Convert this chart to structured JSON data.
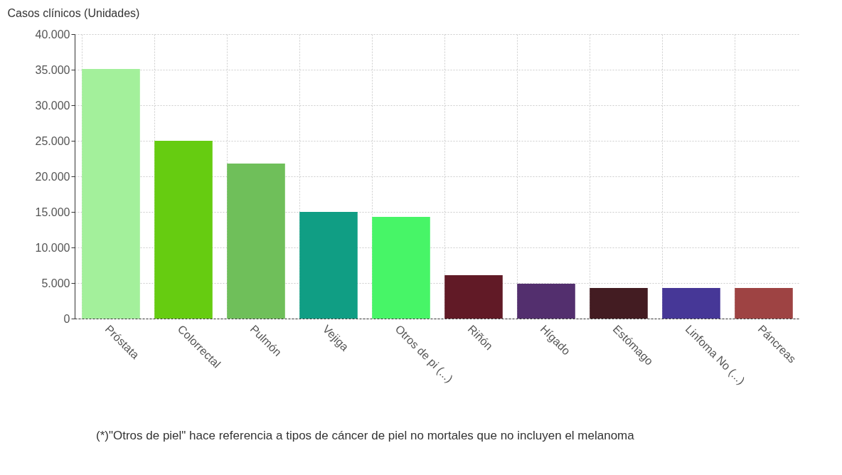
{
  "chart_data": {
    "type": "bar",
    "ylabel": "Casos clínicos (Unidades)",
    "categories": [
      "Próstata",
      "Colorrectal",
      "Pulmón",
      "Vejiga",
      "Otros de pi (...)",
      "Riñón",
      "Hígado",
      "Estómago",
      "Linfoma No (...)",
      "Páncreas"
    ],
    "values": [
      35100,
      25000,
      21800,
      15000,
      14300,
      6100,
      4900,
      4300,
      4300,
      4300
    ],
    "colors": [
      "#a3f09b",
      "#66cc11",
      "#6fbf5a",
      "#109e84",
      "#47f567",
      "#611a26",
      "#532f6e",
      "#431c22",
      "#463797",
      "#9e4343"
    ],
    "ylim": [
      0,
      40000
    ],
    "yticks": [
      {
        "value": 0,
        "label": "0"
      },
      {
        "value": 5000,
        "label": "5.000"
      },
      {
        "value": 10000,
        "label": "10.000"
      },
      {
        "value": 15000,
        "label": "15.000"
      },
      {
        "value": 20000,
        "label": "20.000"
      },
      {
        "value": 25000,
        "label": "25.000"
      },
      {
        "value": 30000,
        "label": "30.000"
      },
      {
        "value": 35000,
        "label": "35.000"
      },
      {
        "value": 40000,
        "label": "40.000"
      }
    ],
    "grid": true,
    "annotations": [
      {
        "text": "(*)\"Otros de piel\" hace referencia a tipos de cáncer de piel no mortales que no incluyen el melanoma"
      }
    ]
  }
}
